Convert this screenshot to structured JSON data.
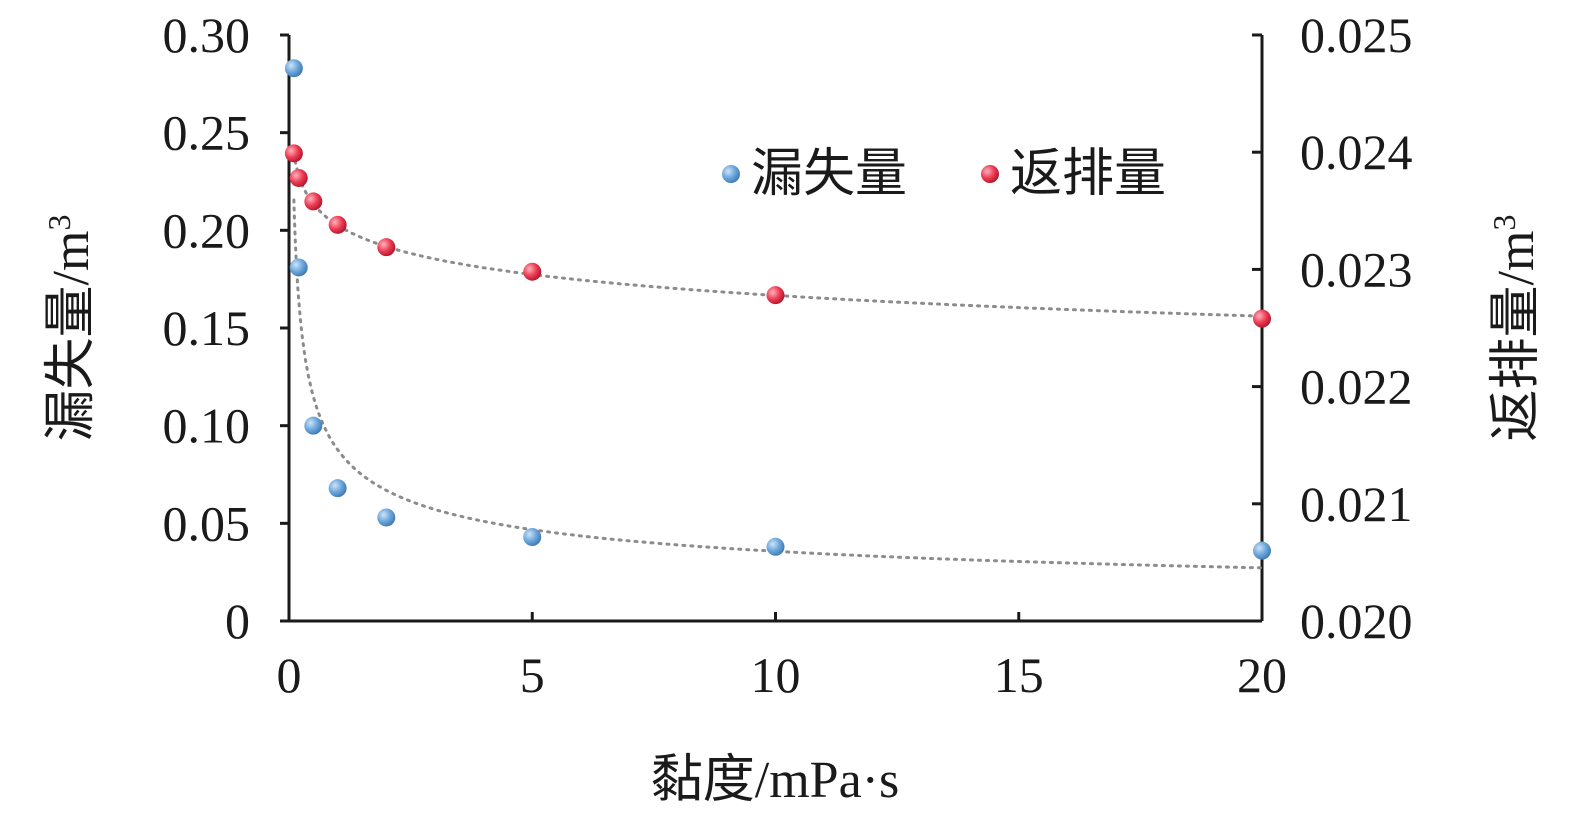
{
  "chart_data": {
    "type": "scatter",
    "xlabel": "黏度/mPa·s",
    "ylabel_left_base": "漏失量/m",
    "ylabel_right_base": "返排量/m",
    "ylabel_superscript": "3",
    "xlim": [
      0,
      20
    ],
    "ylim_left": [
      0,
      0.3
    ],
    "ylim_right": [
      0.02,
      0.025
    ],
    "x_ticks": [
      0,
      5,
      10,
      15,
      20
    ],
    "x_tick_labels": [
      "0",
      "5",
      "10",
      "15",
      "20"
    ],
    "y_left_ticks": [
      0,
      0.05,
      0.1,
      0.15,
      0.2,
      0.25,
      0.3
    ],
    "y_left_tick_labels": [
      "0",
      "0.05",
      "0.10",
      "0.15",
      "0.20",
      "0.25",
      "0.30"
    ],
    "y_right_ticks": [
      0.02,
      0.021,
      0.022,
      0.023,
      0.024,
      0.025
    ],
    "y_right_tick_labels": [
      "0.020",
      "0.021",
      "0.022",
      "0.023",
      "0.024",
      "0.025"
    ],
    "grid": false,
    "legend_position": "top-right",
    "trendline": "dotted",
    "series": [
      {
        "name": "漏失量",
        "axis": "left",
        "color": "#5b9bd5",
        "x": [
          0.1,
          0.2,
          0.5,
          1,
          2,
          5,
          10,
          20
        ],
        "y": [
          0.283,
          0.181,
          0.1,
          0.068,
          0.053,
          0.043,
          0.038,
          0.036
        ]
      },
      {
        "name": "返排量",
        "axis": "right",
        "color": "#e8334a",
        "x": [
          0.1,
          0.2,
          0.5,
          1,
          2,
          5,
          10,
          20
        ],
        "y": [
          0.02399,
          0.02378,
          0.02358,
          0.02338,
          0.02319,
          0.02298,
          0.02278,
          0.02258
        ]
      }
    ]
  }
}
